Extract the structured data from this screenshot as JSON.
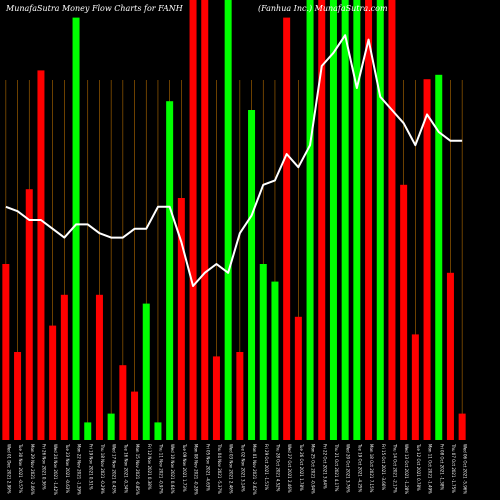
{
  "chart_data": {
    "type": "bar",
    "title": "MunafaSutra  Money Flow  Charts for FANH",
    "subtitle": "(Fanhua  Inc.)  MunafaSutra.com",
    "colors": {
      "background": "#000000",
      "up": "#00ff00",
      "down": "#ff0000",
      "line": "#ffffff",
      "grid": "#b36b00"
    },
    "grid": true,
    "ylim": [
      0,
      100
    ],
    "categories": [
      "Wed 01 Dec 2021 2.99%",
      "Tue 30 Nov 2021 -0.57%",
      "Mon 29 Nov 2021 -2.06%",
      "Fri 26 Nov 2021 0.36%",
      "Wed 24 Nov 2021 -1.42%",
      "Tue 23 Nov 2021 -0.63%",
      "Mon 22 Nov 2021 -1.39%",
      "Fri 19 Nov 2021 0.51%",
      "Thu 18 Nov 2021 -0.29%",
      "Wed 17 Nov 2021 0.43%",
      "Tue 16 Nov 2021 -0.34%",
      "Mon 15 Nov 2021 -0.85%",
      "Fri 12 Nov 2021 0.38%",
      "Thu 11 Nov 2021 -0.97%",
      "Wed 10 Nov 2021 0.64%",
      "Tue 09 Nov 2021 1.73%",
      "Mon 08 Nov 2021 -0.28%",
      "Fri 05 Nov 2021 -4.63%",
      "Thu 04 Nov 2021 -5.37%",
      "Wed 03 Nov 2021 2.46%",
      "Tue 02 Nov 2021 3.14%",
      "Mon 01 Nov 2021 -2.62%",
      "Fri 29 Oct 2021 -1.51%",
      "Thu 28 Oct 2021 4.52%",
      "Wed 27 Oct 2021 2.46%",
      "Tue 26 Oct 2021 1.78%",
      "Mon 25 Oct 2021 -0.94%",
      "Fri 22 Oct 2021 3.64%",
      "Thu 21 Oct 2021 4.17%",
      "Wed 20 Oct 2021 3.76%",
      "Tue 19 Oct 2021 -4.25%",
      "Mon 18 Oct 2021 7.15%",
      "Fri 15 Oct 2021 -3.66%",
      "Thu 14 Oct 2021 -2.17%",
      "Wed 13 Oct 2021 -1.28%",
      "Tue 12 Oct 2021 0.78%",
      "Mon 11 Oct 2021 -1.49%",
      "Fri 08 Oct 2021 -1.38%",
      "Thu 07 Oct 2021 -1.75%",
      "Wed 06 Oct 2021 -5.96%"
    ],
    "series": [
      {
        "kind": "bar",
        "values": [
          40,
          20,
          57,
          84,
          26,
          33,
          96,
          4,
          33,
          6,
          17,
          11,
          31,
          4,
          77,
          55,
          100,
          100,
          19,
          100,
          20,
          75,
          40,
          36,
          96,
          28,
          100,
          100,
          100,
          100,
          100,
          100,
          100,
          100,
          58,
          24,
          82,
          83,
          38,
          6
        ],
        "colors": [
          "down",
          "down",
          "down",
          "down",
          "down",
          "down",
          "up",
          "up",
          "down",
          "up",
          "down",
          "down",
          "up",
          "up",
          "up",
          "down",
          "down",
          "down",
          "down",
          "up",
          "down",
          "up",
          "up",
          "up",
          "down",
          "down",
          "up",
          "down",
          "up",
          "up",
          "up",
          "down",
          "up",
          "down",
          "down",
          "down",
          "down",
          "up",
          "down",
          "down"
        ]
      },
      {
        "kind": "line",
        "values": [
          53,
          52,
          50,
          50,
          48,
          46,
          49,
          49,
          47,
          46,
          46,
          48,
          48,
          53,
          53,
          45,
          35,
          38,
          40,
          38,
          47,
          51,
          58,
          59,
          65,
          62,
          67,
          85,
          88,
          92,
          80,
          91,
          78,
          75,
          72,
          67,
          74,
          70,
          68,
          68
        ]
      }
    ]
  }
}
